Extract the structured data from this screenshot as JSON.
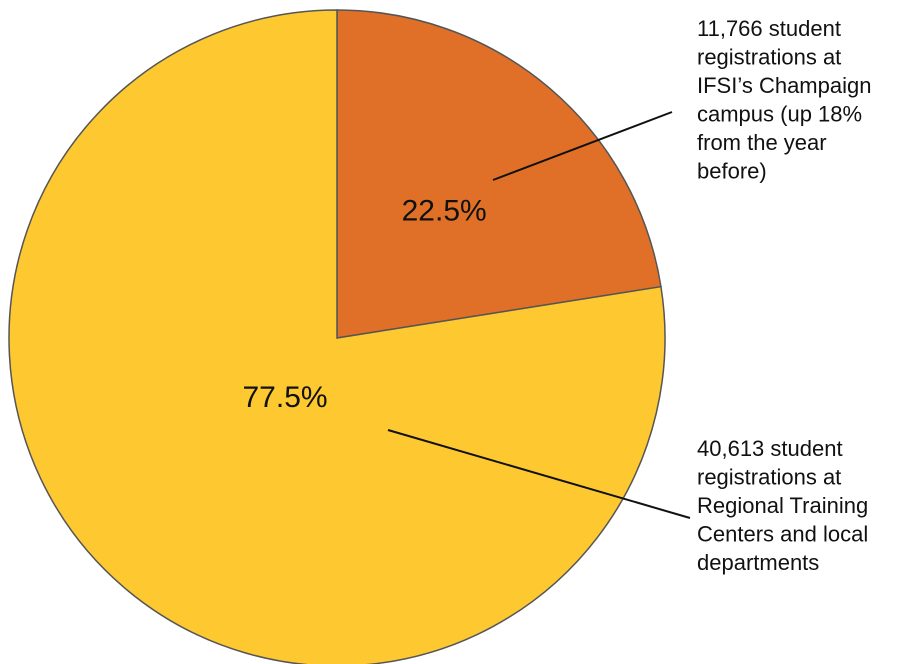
{
  "chart_data": {
    "type": "pie",
    "categories": [
      [
        "11,766 student",
        "registrations at",
        "IFSI’s Champaign",
        "campus (up 18%",
        "from the year",
        "before)"
      ],
      [
        "40,613 student",
        "registrations at",
        "Regional Training",
        "Centers and local",
        "departments"
      ]
    ],
    "values": [
      22.5,
      77.5
    ],
    "value_labels": [
      "22.5%",
      "77.5%"
    ],
    "colors": [
      "#E07028",
      "#FDC830"
    ]
  }
}
